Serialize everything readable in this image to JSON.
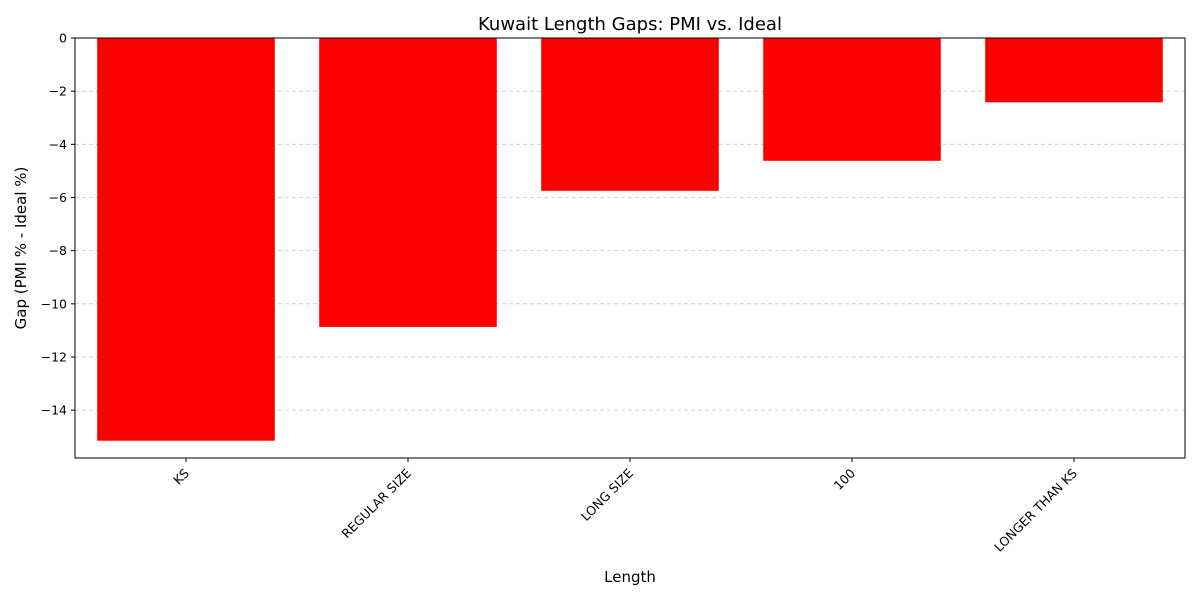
{
  "chart_data": {
    "type": "bar",
    "title": "Kuwait Length Gaps: PMI vs. Ideal",
    "xlabel": "Length",
    "ylabel": "Gap (PMI % - Ideal %)",
    "categories": [
      "KS",
      "REGULAR SIZE",
      "LONG SIZE",
      "100",
      "LONGER THAN KS"
    ],
    "values": [
      -15.15,
      -10.87,
      -5.75,
      -4.62,
      -2.42
    ],
    "ylim": [
      -15.8,
      0
    ],
    "yticks": [
      0,
      -2,
      -4,
      -6,
      -8,
      -10,
      -12,
      -14
    ],
    "ytick_labels": [
      "0",
      "−2",
      "−4",
      "−6",
      "−8",
      "−10",
      "−12",
      "−14"
    ],
    "grid": "y-dashed",
    "bar_color": "#ff0000",
    "xtick_rotation_deg": -45
  }
}
